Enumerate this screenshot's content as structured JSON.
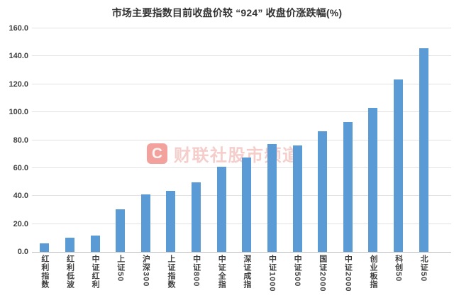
{
  "chart_data": {
    "type": "bar",
    "title": "市场主要指数目前收盘价较 “924” 收盘价涨跌幅(%)",
    "categories": [
      "红利指数",
      "红利低波",
      "中证红利",
      "上证50",
      "沪深300",
      "上证指数",
      "中证800",
      "中证全指",
      "深证成指",
      "中证1000",
      "中证500",
      "国证2000",
      "中证2000",
      "创业板指",
      "科创50",
      "北证50"
    ],
    "values": [
      5.9,
      10.4,
      11.6,
      30.5,
      41.0,
      43.5,
      49.7,
      61.0,
      67.7,
      77.0,
      76.2,
      86.3,
      93.0,
      103.2,
      123.2,
      145.9
    ],
    "xlabel": "",
    "ylabel": "",
    "ylim": [
      0,
      160
    ],
    "ytick_step": 20,
    "ytick_decimals": 1,
    "grid": true,
    "legend_position": "none",
    "bar_color": "#5B9BD5",
    "x_label_orientation": "vertical"
  },
  "watermark": {
    "logo_letter": "C",
    "text": "财联社股市频道",
    "logo_color": "rgba(232,83,74,0.55)",
    "text_color": "rgba(236,166,160,0.55)"
  },
  "colors": {
    "background": "#ffffff",
    "title": "#333333",
    "axis_label": "#404040",
    "gridline": "#e2e2e2",
    "axis_line": "#bfbfbf"
  }
}
